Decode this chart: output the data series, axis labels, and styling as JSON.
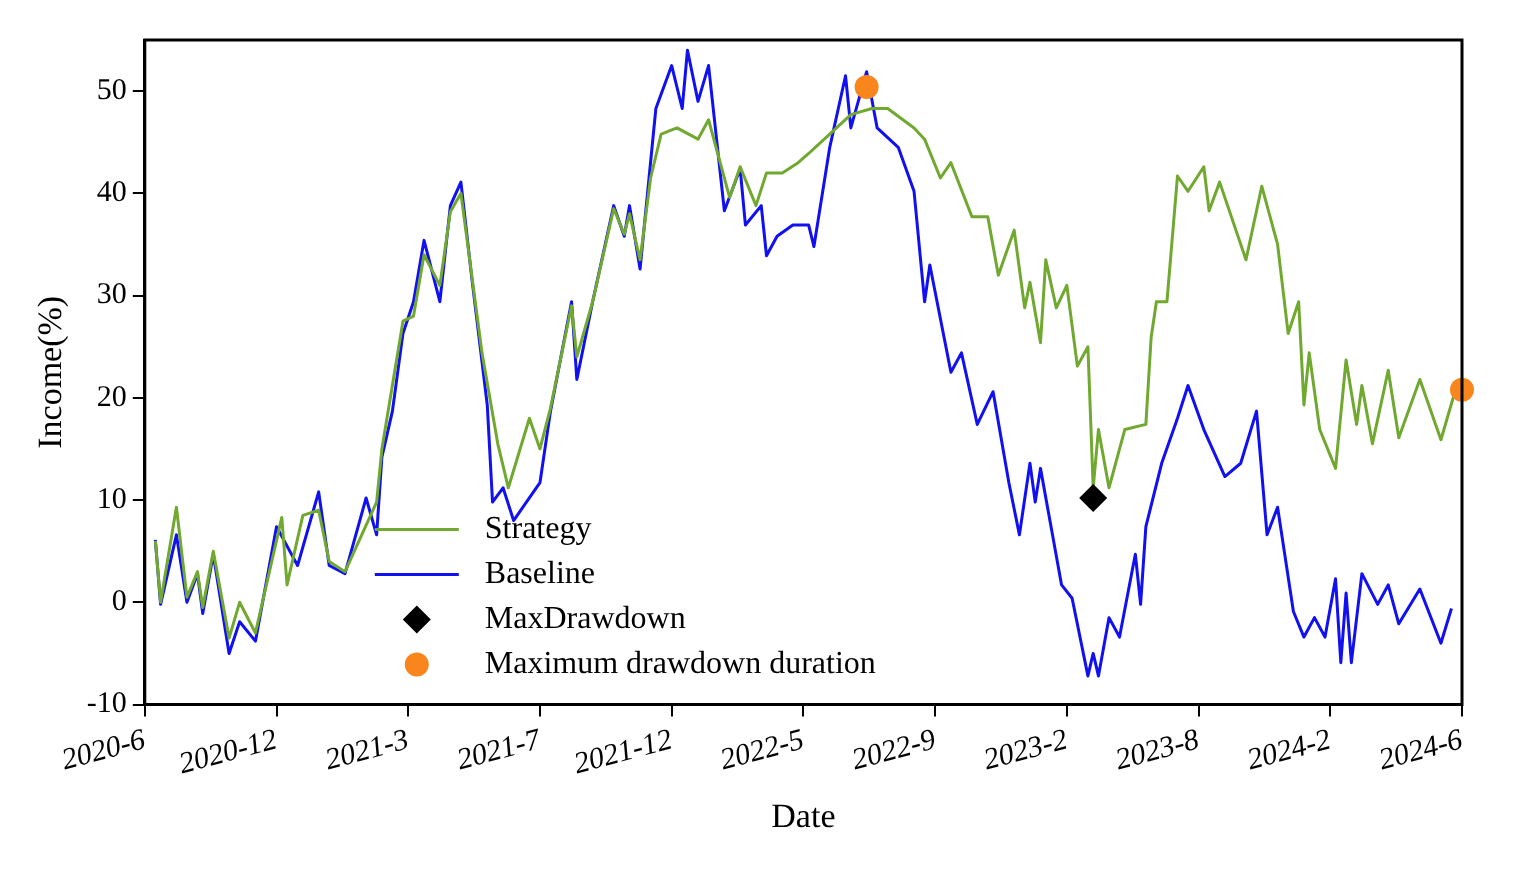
{
  "chart_data": {
    "type": "line",
    "xlabel": "Date",
    "ylabel": "Income(%)",
    "categories": [
      "2020-6",
      null,
      null,
      null,
      null,
      null,
      null,
      null,
      null,
      null,
      null,
      null,
      null,
      null,
      null,
      null,
      null,
      null,
      null,
      null,
      null,
      null,
      null,
      null,
      null,
      "2020-12",
      null,
      null,
      null,
      null,
      null,
      null,
      null,
      null,
      null,
      null,
      null,
      null,
      null,
      null,
      null,
      null,
      null,
      null,
      null,
      null,
      null,
      null,
      null,
      null,
      "2021-3",
      null,
      null,
      null,
      null,
      null,
      null,
      null,
      null,
      null,
      null,
      null,
      null,
      null,
      null,
      null,
      null,
      null,
      null,
      null,
      null,
      null,
      null,
      null,
      null,
      "2021-7",
      null,
      null,
      null,
      null,
      null,
      null,
      null,
      null,
      null,
      null,
      null,
      null,
      null,
      null,
      null,
      null,
      null,
      null,
      null,
      null,
      null,
      null,
      null,
      null,
      "2021-12",
      null,
      null,
      null,
      null,
      null,
      null,
      null,
      null,
      null,
      null,
      null,
      null,
      null,
      null,
      null,
      null,
      null,
      null,
      null,
      null,
      null,
      null,
      null,
      null,
      "2022-5",
      null,
      null,
      null,
      null,
      null,
      null,
      null,
      null,
      null,
      null,
      null,
      null,
      null,
      null,
      null,
      null,
      null,
      null,
      null,
      null,
      null,
      null,
      null,
      null,
      "2022-9",
      null,
      null,
      null,
      null,
      null,
      null,
      null,
      null,
      null,
      null,
      null,
      null,
      null,
      null,
      null,
      null,
      null,
      null,
      null,
      null,
      null,
      null,
      null,
      null,
      "2023-2",
      null,
      null,
      null,
      null,
      null,
      null,
      null,
      null,
      null,
      null,
      null,
      null,
      null,
      null,
      null,
      null,
      null,
      null,
      null,
      null,
      null,
      null,
      null,
      null,
      "2023-8",
      null,
      null,
      null,
      null,
      null,
      null,
      null,
      null,
      null,
      null,
      null,
      null,
      null,
      null,
      null,
      null,
      null,
      null,
      null,
      null,
      null,
      null,
      null,
      null,
      "2024-2",
      null,
      null,
      null,
      null,
      null,
      null,
      null,
      null,
      null,
      null,
      null,
      null,
      null,
      null,
      null,
      null,
      null,
      null,
      null,
      null,
      null,
      null,
      null,
      null,
      "2024-6"
    ],
    "ylim": [
      -10,
      55
    ],
    "yticks": [
      -10,
      0,
      10,
      20,
      30,
      40,
      50
    ],
    "grid": false,
    "legend": "bottom left",
    "series": [
      {
        "name": "Strategy",
        "color": "#70a830",
        "marker": "none",
        "values": [
          null,
          null,
          6,
          0,
          null,
          null,
          9.3,
          null,
          0.5,
          null,
          3,
          -0.5,
          null,
          5,
          null,
          null,
          -3.5,
          null,
          0,
          null,
          null,
          -3,
          null,
          null,
          null,
          null,
          8.3,
          1.7,
          null,
          null,
          8.5,
          null,
          null,
          9,
          null,
          4,
          null,
          null,
          3,
          null,
          null,
          null,
          null,
          null,
          9.8,
          15,
          null,
          null,
          null,
          27.5,
          null,
          28,
          null,
          34,
          null,
          null,
          31,
          null,
          38.2,
          null,
          40,
          null,
          null,
          null,
          24.4,
          null,
          null,
          15.5,
          null,
          11.2,
          null,
          null,
          null,
          18,
          null,
          15,
          null,
          19,
          null,
          null,
          null,
          29,
          24,
          null,
          null,
          29.4,
          null,
          null,
          null,
          38.5,
          null,
          36,
          38,
          null,
          33.5,
          null,
          41.5,
          null,
          45.8,
          null,
          null,
          46.4,
          null,
          null,
          null,
          45.3,
          null,
          47.2,
          null,
          null,
          null,
          39.6,
          null,
          42.6,
          null,
          null,
          38.8,
          null,
          42,
          null,
          null,
          42,
          null,
          null,
          43,
          null,
          43.9,
          null,
          null,
          null,
          45.8,
          null,
          null,
          null,
          47.7,
          null,
          null,
          null,
          48.3,
          null,
          null,
          48.3,
          null,
          null,
          null,
          null,
          46.4,
          null,
          45.3,
          null,
          null,
          41.5,
          null,
          43,
          null,
          null,
          null,
          37.7,
          null,
          null,
          37.7,
          null,
          32,
          null,
          null,
          36.4,
          null,
          28.8,
          31.3,
          null,
          25.4,
          33.5,
          null,
          28.8,
          null,
          31,
          null,
          23.1,
          null,
          25,
          11.2,
          16.9,
          null,
          11.2,
          null,
          null,
          16.9,
          null,
          null,
          null,
          17.4,
          25.9,
          29.4,
          null,
          29.4,
          null,
          41.7,
          null,
          40.2,
          null,
          null,
          42.6,
          38.3,
          null,
          41.1,
          null,
          null,
          null,
          null,
          33.5,
          null,
          null,
          40.7,
          null,
          null,
          35,
          null,
          26.3,
          null,
          29.4,
          19.3,
          24.4,
          null,
          16.9,
          null,
          null,
          13.1,
          null,
          23.7,
          null,
          17.4,
          21.2,
          null,
          15.5,
          null,
          null,
          22.7,
          null,
          16.1,
          null,
          null,
          null,
          21.8,
          null,
          null,
          null,
          15.9,
          null,
          null,
          21.2,
          null
        ]
      },
      {
        "name": "Baseline",
        "color": "#1010f0",
        "marker": "none",
        "values": [
          null,
          null,
          6.1,
          -0.2,
          null,
          null,
          6.6,
          null,
          0,
          null,
          2.8,
          -1.1,
          null,
          4.7,
          null,
          null,
          -5,
          null,
          -1.9,
          null,
          null,
          -3.8,
          null,
          null,
          null,
          7.4,
          null,
          null,
          null,
          3.6,
          null,
          null,
          null,
          10.8,
          null,
          3.6,
          null,
          null,
          2.8,
          null,
          null,
          null,
          10.2,
          null,
          6.6,
          14.2,
          null,
          18.7,
          null,
          26.3,
          null,
          29.4,
          null,
          35.4,
          null,
          null,
          29.4,
          null,
          38.8,
          null,
          41.1,
          null,
          32,
          null,
          null,
          19.3,
          9.8,
          null,
          11.2,
          null,
          8,
          null,
          null,
          null,
          null,
          11.7,
          null,
          18.7,
          null,
          null,
          null,
          29.4,
          21.8,
          null,
          null,
          29.4,
          null,
          null,
          null,
          38.8,
          null,
          35.8,
          38.8,
          null,
          32.6,
          null,
          null,
          48.3,
          null,
          null,
          52.5,
          null,
          48.3,
          54,
          null,
          49,
          null,
          52.5,
          null,
          null,
          38.3,
          null,
          null,
          42.4,
          36.9,
          null,
          null,
          38.8,
          33.9,
          null,
          35.8,
          null,
          null,
          36.9,
          null,
          null,
          36.9,
          34.8,
          null,
          null,
          44.5,
          null,
          null,
          51.5,
          46.4,
          null,
          null,
          51.9,
          null,
          46.4,
          null,
          null,
          null,
          44.5,
          null,
          null,
          40.2,
          null,
          29.4,
          33,
          null,
          null,
          null,
          22.5,
          null,
          24.4,
          null,
          null,
          17.4,
          null,
          null,
          20.6,
          null,
          null,
          11.7,
          null,
          6.6,
          null,
          13.6,
          9.8,
          13.1,
          null,
          null,
          null,
          1.7,
          null,
          0.4,
          null,
          null,
          -7.2,
          -5,
          -7.2,
          null,
          -1.5,
          null,
          -3.4,
          null,
          null,
          4.7,
          -0.2,
          7.4,
          null,
          null,
          13.6,
          null,
          null,
          18,
          null,
          21.2,
          null,
          null,
          16.9,
          null,
          null,
          null,
          12.3,
          null,
          null,
          13.6,
          null,
          null,
          18.7,
          null,
          6.6,
          null,
          9.3,
          null,
          null,
          -0.9,
          null,
          -3.4,
          null,
          -1.5,
          null,
          -3.4,
          null,
          2.3,
          -5.9,
          0.9,
          -5.9,
          null,
          2.8,
          null,
          null,
          -0.2,
          null,
          1.7,
          null,
          -2.1,
          null,
          null,
          null,
          1.3,
          null,
          null,
          null,
          -4,
          null,
          -0.6,
          null,
          null
        ]
      },
      {
        "name": "MaxDrawdown",
        "type": "scatter",
        "color": "#000000",
        "marker": "diamond",
        "values": [
          null,
          null,
          null,
          null,
          null,
          null,
          null,
          null,
          null,
          null,
          null,
          null,
          null,
          null,
          null,
          null,
          null,
          null,
          null,
          null,
          null,
          null,
          null,
          null,
          null,
          null,
          null,
          null,
          null,
          null,
          null,
          null,
          null,
          null,
          null,
          null,
          null,
          null,
          null,
          null,
          null,
          null,
          null,
          null,
          null,
          null,
          null,
          null,
          null,
          null,
          null,
          null,
          null,
          null,
          null,
          null,
          null,
          null,
          null,
          null,
          null,
          null,
          null,
          null,
          null,
          null,
          null,
          null,
          null,
          null,
          null,
          null,
          null,
          null,
          null,
          null,
          null,
          null,
          null,
          null,
          null,
          null,
          null,
          null,
          null,
          null,
          null,
          null,
          null,
          null,
          null,
          null,
          null,
          null,
          null,
          null,
          null,
          null,
          null,
          null,
          null,
          null,
          null,
          null,
          null,
          null,
          null,
          null,
          null,
          null,
          null,
          null,
          null,
          null,
          null,
          null,
          null,
          null,
          null,
          null,
          null,
          null,
          null,
          null,
          null,
          null,
          null,
          null,
          null,
          null,
          null,
          null,
          null,
          null,
          null,
          null,
          null,
          null,
          null,
          null,
          null,
          null,
          null,
          null,
          null,
          null,
          null,
          null,
          null,
          null,
          null,
          null,
          null,
          null,
          null,
          null,
          null,
          null,
          null,
          null,
          null,
          null,
          null,
          null,
          null,
          null,
          null,
          null,
          null,
          null,
          null,
          null,
          null,
          null,
          null,
          null,
          null,
          null,
          null,
          null,
          10.2,
          null,
          null,
          null,
          null,
          null,
          null,
          null,
          null,
          null,
          null,
          null,
          null,
          null,
          null,
          null,
          null,
          null,
          null,
          null,
          null,
          null,
          null,
          null,
          null,
          null,
          null,
          null,
          null,
          null,
          null,
          null,
          null,
          null,
          null,
          null,
          null,
          null,
          null,
          null,
          null,
          null,
          null,
          null,
          null,
          null,
          null,
          null,
          null,
          null,
          null,
          null,
          null,
          null,
          null,
          null,
          null,
          null,
          null,
          null,
          null,
          null,
          null,
          null,
          null,
          null,
          null,
          null,
          null,
          null,
          null
        ]
      },
      {
        "name": "Maximum drawdown duration",
        "type": "scatter",
        "color": "#f8861c",
        "marker": "circle",
        "values": [
          null,
          null,
          null,
          null,
          null,
          null,
          null,
          null,
          null,
          null,
          null,
          null,
          null,
          null,
          null,
          null,
          null,
          null,
          null,
          null,
          null,
          null,
          null,
          null,
          null,
          null,
          null,
          null,
          null,
          null,
          null,
          null,
          null,
          null,
          null,
          null,
          null,
          null,
          null,
          null,
          null,
          null,
          null,
          null,
          null,
          null,
          null,
          null,
          null,
          null,
          null,
          null,
          null,
          null,
          null,
          null,
          null,
          null,
          null,
          null,
          null,
          null,
          null,
          null,
          null,
          null,
          null,
          null,
          null,
          null,
          null,
          null,
          null,
          null,
          null,
          null,
          null,
          null,
          null,
          null,
          null,
          null,
          null,
          null,
          null,
          null,
          null,
          null,
          null,
          null,
          null,
          null,
          null,
          null,
          null,
          null,
          null,
          null,
          null,
          null,
          null,
          null,
          null,
          null,
          null,
          null,
          null,
          null,
          null,
          null,
          null,
          null,
          null,
          null,
          null,
          null,
          null,
          null,
          null,
          null,
          null,
          null,
          null,
          null,
          null,
          null,
          null,
          null,
          null,
          null,
          null,
          null,
          null,
          null,
          null,
          null,
          null,
          50.4,
          null,
          null,
          null,
          null,
          null,
          null,
          null,
          null,
          null,
          null,
          null,
          null,
          null,
          null,
          null,
          null,
          null,
          null,
          null,
          null,
          null,
          null,
          null,
          null,
          null,
          null,
          null,
          null,
          null,
          null,
          null,
          null,
          null,
          null,
          null,
          null,
          null,
          null,
          null,
          null,
          null,
          null,
          null,
          null,
          null,
          null,
          null,
          null,
          null,
          null,
          null,
          null,
          null,
          null,
          null,
          null,
          null,
          null,
          null,
          null,
          null,
          null,
          null,
          null,
          null,
          null,
          null,
          null,
          null,
          null,
          null,
          null,
          null,
          null,
          null,
          null,
          null,
          null,
          null,
          null,
          null,
          null,
          null,
          null,
          null,
          null,
          null,
          null,
          null,
          null,
          null,
          null,
          null,
          null,
          null,
          null,
          null,
          null,
          null,
          null,
          null,
          null,
          null,
          null,
          null,
          null,
          null,
          null,
          null,
          null,
          null,
          null,
          20.8
        ]
      }
    ]
  }
}
